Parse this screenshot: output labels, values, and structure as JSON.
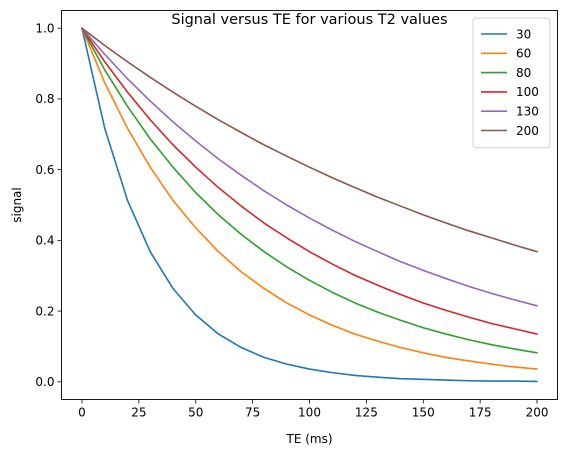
{
  "chart_data": {
    "type": "line",
    "title": "Signal versus TE for various T2 values",
    "xlabel": "TE (ms)",
    "ylabel": "signal",
    "xlim": [
      -9,
      209
    ],
    "ylim": [
      -0.05,
      1.05
    ],
    "xticks": [
      0,
      25,
      50,
      75,
      100,
      125,
      150,
      175,
      200
    ],
    "yticks": [
      0.0,
      0.2,
      0.4,
      0.6,
      0.8,
      1.0
    ],
    "xtick_labels": [
      "0",
      "25",
      "50",
      "75",
      "100",
      "125",
      "150",
      "175",
      "200"
    ],
    "ytick_labels": [
      "0.0",
      "0.2",
      "0.4",
      "0.6",
      "0.8",
      "1.0"
    ],
    "grid": false,
    "legend_position": "top-right",
    "x": [
      0,
      10,
      20,
      30,
      40,
      50,
      60,
      70,
      80,
      90,
      100,
      110,
      120,
      130,
      140,
      150,
      160,
      170,
      180,
      190,
      200
    ],
    "series": [
      {
        "name": "30",
        "color": "#1f77b4",
        "values": [
          1.0,
          0.717,
          0.513,
          0.368,
          0.264,
          0.189,
          0.135,
          0.097,
          0.069,
          0.05,
          0.036,
          0.026,
          0.018,
          0.013,
          0.009,
          0.007,
          0.005,
          0.003,
          0.002,
          0.002,
          0.001
        ]
      },
      {
        "name": "60",
        "color": "#ff7f0e",
        "values": [
          1.0,
          0.846,
          0.717,
          0.607,
          0.513,
          0.435,
          0.368,
          0.311,
          0.264,
          0.223,
          0.189,
          0.16,
          0.135,
          0.115,
          0.097,
          0.082,
          0.069,
          0.059,
          0.05,
          0.042,
          0.036
        ]
      },
      {
        "name": "80",
        "color": "#2ca02c",
        "values": [
          1.0,
          0.882,
          0.779,
          0.687,
          0.607,
          0.535,
          0.472,
          0.417,
          0.368,
          0.325,
          0.287,
          0.253,
          0.223,
          0.197,
          0.174,
          0.153,
          0.135,
          0.119,
          0.105,
          0.093,
          0.082
        ]
      },
      {
        "name": "100",
        "color": "#d62728",
        "values": [
          1.0,
          0.905,
          0.819,
          0.741,
          0.67,
          0.607,
          0.549,
          0.497,
          0.449,
          0.407,
          0.368,
          0.333,
          0.301,
          0.273,
          0.247,
          0.223,
          0.202,
          0.183,
          0.165,
          0.15,
          0.135
        ]
      },
      {
        "name": "130",
        "color": "#9467bd",
        "values": [
          1.0,
          0.926,
          0.857,
          0.794,
          0.735,
          0.681,
          0.63,
          0.584,
          0.54,
          0.5,
          0.463,
          0.429,
          0.397,
          0.368,
          0.34,
          0.315,
          0.292,
          0.27,
          0.25,
          0.232,
          0.215
        ]
      },
      {
        "name": "200",
        "color": "#8c564b",
        "values": [
          1.0,
          0.951,
          0.905,
          0.861,
          0.819,
          0.779,
          0.741,
          0.705,
          0.67,
          0.638,
          0.607,
          0.577,
          0.549,
          0.522,
          0.497,
          0.472,
          0.449,
          0.427,
          0.407,
          0.387,
          0.368
        ]
      }
    ]
  }
}
